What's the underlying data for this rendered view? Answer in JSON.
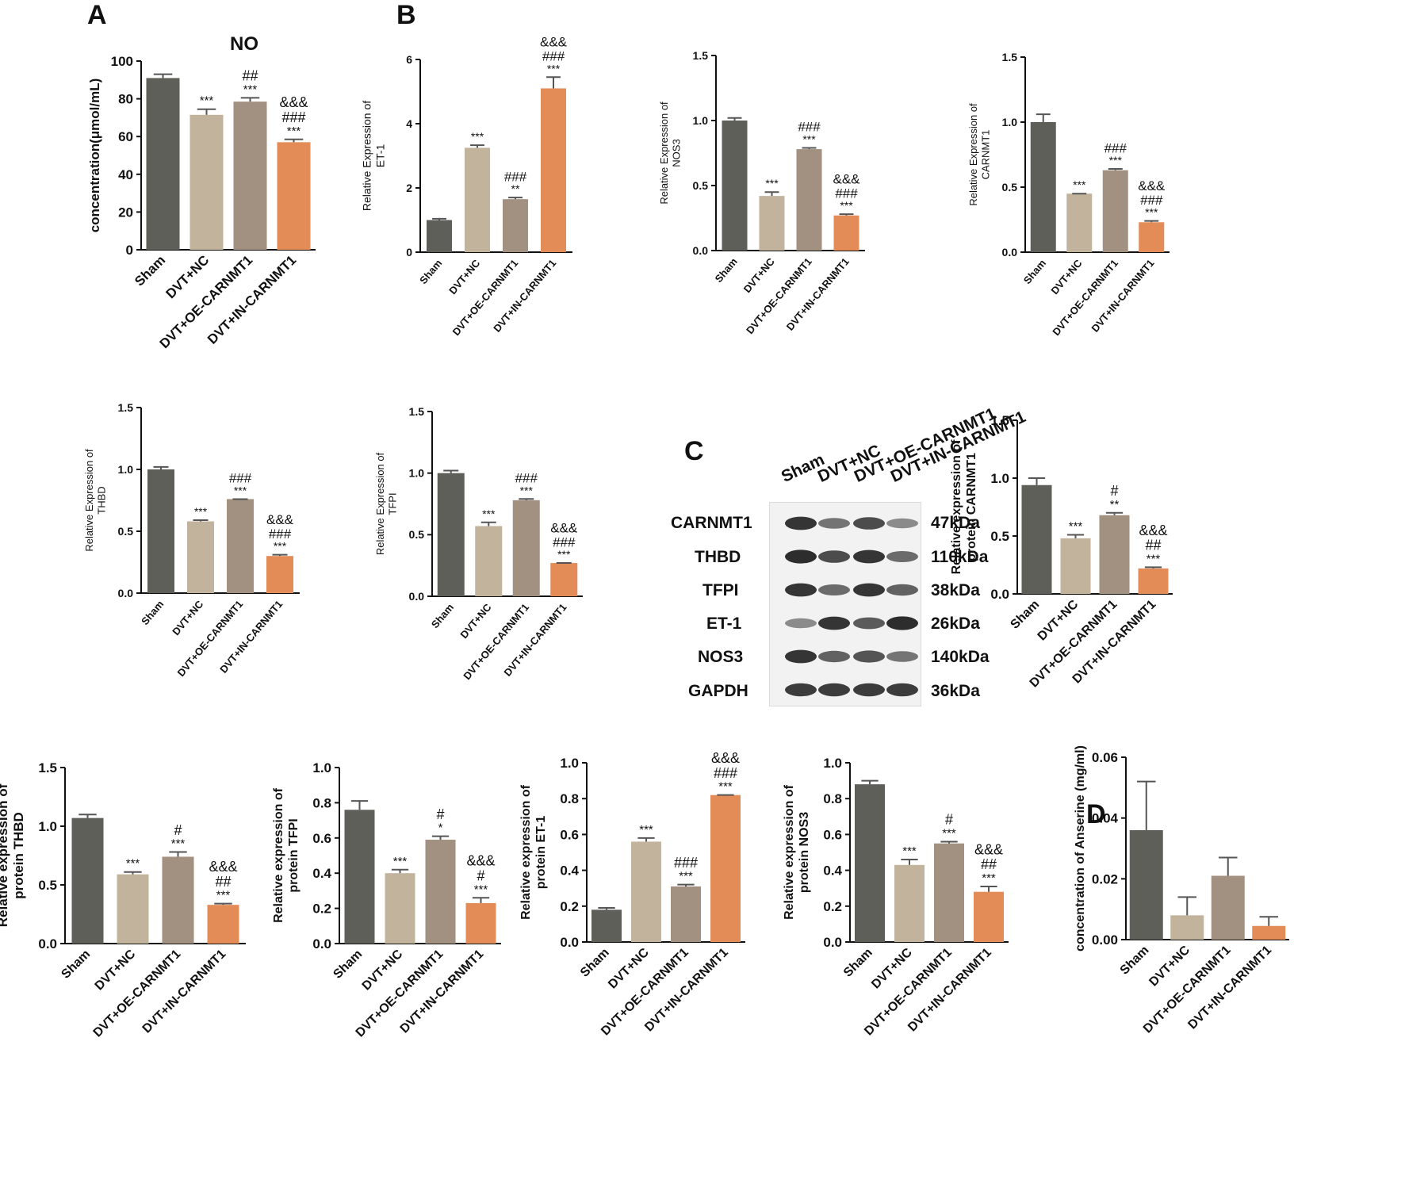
{
  "panel_labels": {
    "A": "A",
    "B": "B",
    "C": "C",
    "D": "D"
  },
  "colors": {
    "sham": "#5f5f5a",
    "nc": "#c2b49c",
    "oe": "#a29180",
    "in": "#e38c58",
    "axis": "#111111",
    "error": "#555555"
  },
  "chart_data": [
    {
      "id": "A-no",
      "type": "bar",
      "title": "NO",
      "ylabel": "concentration(μmol/mL)",
      "xlabel": "",
      "categories": [
        "Sham",
        "DVT+NC",
        "DVT+OE-CARNMT1",
        "DVT+IN-CARNMT1"
      ],
      "values": [
        91,
        71.5,
        78.5,
        57
      ],
      "errors": [
        2.0,
        3.0,
        2.0,
        1.5
      ],
      "annotations": [
        [],
        [
          "***"
        ],
        [
          "##",
          "***"
        ],
        [
          "&&&",
          "###",
          "***"
        ]
      ],
      "ylim": [
        0,
        100
      ],
      "yticks": [
        "0",
        "20",
        "40",
        "60",
        "80",
        "100"
      ]
    },
    {
      "id": "B-et1",
      "type": "bar",
      "title": "",
      "ylabel": [
        "Relative Expression of",
        "ET-1"
      ],
      "categories": [
        "Sham",
        "DVT+NC",
        "DVT+OE-CARNMT1",
        "DVT+IN-CARNMT1"
      ],
      "values": [
        1.0,
        3.25,
        1.65,
        5.1
      ],
      "errors": [
        0.04,
        0.08,
        0.05,
        0.35
      ],
      "annotations": [
        [],
        [
          "***"
        ],
        [
          "###",
          "**"
        ],
        [
          "&&&",
          "###",
          "***"
        ]
      ],
      "ylim": [
        0,
        6
      ],
      "yticks": [
        "0",
        "2",
        "4",
        "6"
      ]
    },
    {
      "id": "B-nos3",
      "type": "bar",
      "title": "",
      "ylabel": [
        "Relative Expression of",
        "NOS3"
      ],
      "categories": [
        "Sham",
        "DVT+NC",
        "DVT+OE-CARNMT1",
        "DVT+IN-CARNMT1"
      ],
      "values": [
        1.0,
        0.42,
        0.78,
        0.27
      ],
      "errors": [
        0.02,
        0.03,
        0.01,
        0.01
      ],
      "annotations": [
        [],
        [
          "***"
        ],
        [
          "###",
          "***"
        ],
        [
          "&&&",
          "###",
          "***"
        ]
      ],
      "ylim": [
        0,
        1.5
      ],
      "yticks": [
        "0.0",
        "0.5",
        "1.0",
        "1.5"
      ]
    },
    {
      "id": "B-carnmt1",
      "type": "bar",
      "title": "",
      "ylabel": [
        "Relative Expression of",
        "CARNMT1"
      ],
      "categories": [
        "Sham",
        "DVT+NC",
        "DVT+OE-CARNMT1",
        "DVT+IN-CARNMT1"
      ],
      "values": [
        1.0,
        0.45,
        0.63,
        0.23
      ],
      "errors": [
        0.06,
        0.0,
        0.01,
        0.01
      ],
      "annotations": [
        [],
        [
          "***"
        ],
        [
          "###",
          "***"
        ],
        [
          "&&&",
          "###",
          "***"
        ]
      ],
      "ylim": [
        0,
        1.5
      ],
      "yticks": [
        "0.0",
        "0.5",
        "1.0",
        "1.5"
      ]
    },
    {
      "id": "B-thbd",
      "type": "bar",
      "title": "",
      "ylabel": [
        "Relative Expression of",
        "THBD"
      ],
      "categories": [
        "Sham",
        "DVT+NC",
        "DVT+OE-CARNMT1",
        "DVT+IN-CARNMT1"
      ],
      "values": [
        1.0,
        0.58,
        0.76,
        0.3
      ],
      "errors": [
        0.02,
        0.01,
        0.0,
        0.01
      ],
      "annotations": [
        [],
        [
          "***"
        ],
        [
          "###",
          "***"
        ],
        [
          "&&&",
          "###",
          "***"
        ]
      ],
      "ylim": [
        0,
        1.5
      ],
      "yticks": [
        "0.0",
        "0.5",
        "1.0",
        "1.5"
      ]
    },
    {
      "id": "B-tfpi",
      "type": "bar",
      "title": "",
      "ylabel": [
        "Relative Expression of",
        "TFPI"
      ],
      "categories": [
        "Sham",
        "DVT+NC",
        "DVT+OE-CARNMT1",
        "DVT+IN-CARNMT1"
      ],
      "values": [
        1.0,
        0.57,
        0.78,
        0.27
      ],
      "errors": [
        0.02,
        0.03,
        0.01,
        0.0
      ],
      "annotations": [
        [],
        [
          "***"
        ],
        [
          "###",
          "***"
        ],
        [
          "&&&",
          "###",
          "***"
        ]
      ],
      "ylim": [
        0,
        1.5
      ],
      "yticks": [
        "0.0",
        "0.5",
        "1.0",
        "1.5"
      ]
    },
    {
      "id": "C-carnmt1",
      "type": "bar",
      "title": "",
      "ylabel": [
        "Relative expression of",
        "protein CARNMT1"
      ],
      "categories": [
        "Sham",
        "DVT+NC",
        "DVT+OE-CARNMT1",
        "DVT+IN-CARNMT1"
      ],
      "values": [
        0.94,
        0.48,
        0.68,
        0.22
      ],
      "errors": [
        0.06,
        0.03,
        0.02,
        0.01
      ],
      "annotations": [
        [],
        [
          "***"
        ],
        [
          "#",
          "**"
        ],
        [
          "&&&",
          "##",
          "***"
        ]
      ],
      "ylim": [
        0,
        1.5
      ],
      "yticks": [
        "0.0",
        "0.5",
        "1.0",
        "1.5"
      ]
    },
    {
      "id": "C-thbd",
      "type": "bar",
      "title": "",
      "ylabel": [
        "Relative expression of",
        "protein THBD"
      ],
      "categories": [
        "Sham",
        "DVT+NC",
        "DVT+OE-CARNMT1",
        "DVT+IN-CARNMT1"
      ],
      "values": [
        1.07,
        0.59,
        0.74,
        0.33
      ],
      "errors": [
        0.03,
        0.02,
        0.04,
        0.01
      ],
      "annotations": [
        [],
        [
          "***"
        ],
        [
          "#",
          "***"
        ],
        [
          "&&&",
          "##",
          "***"
        ]
      ],
      "ylim": [
        0,
        1.5
      ],
      "yticks": [
        "0.0",
        "0.5",
        "1.0",
        "1.5"
      ]
    },
    {
      "id": "C-tfpi",
      "type": "bar",
      "title": "",
      "ylabel": [
        "Relative expression of",
        "protein TFPI"
      ],
      "categories": [
        "Sham",
        "DVT+NC",
        "DVT+OE-CARNMT1",
        "DVT+IN-CARNMT1"
      ],
      "values": [
        0.76,
        0.4,
        0.59,
        0.23
      ],
      "errors": [
        0.05,
        0.02,
        0.02,
        0.03
      ],
      "annotations": [
        [],
        [
          "***"
        ],
        [
          "#",
          "*"
        ],
        [
          "&&&",
          "#",
          "***"
        ]
      ],
      "ylim": [
        0,
        1.0
      ],
      "yticks": [
        "0.0",
        "0.2",
        "0.4",
        "0.6",
        "0.8",
        "1.0"
      ]
    },
    {
      "id": "C-et1",
      "type": "bar",
      "title": "",
      "ylabel": [
        "Relative expression of",
        "protein ET-1"
      ],
      "categories": [
        "Sham",
        "DVT+NC",
        "DVT+OE-CARNMT1",
        "DVT+IN-CARNMT1"
      ],
      "values": [
        0.18,
        0.56,
        0.31,
        0.82
      ],
      "errors": [
        0.01,
        0.02,
        0.01,
        0.0
      ],
      "annotations": [
        [],
        [
          "***"
        ],
        [
          "###",
          "***"
        ],
        [
          "&&&",
          "###",
          "***"
        ]
      ],
      "ylim": [
        0,
        1.0
      ],
      "yticks": [
        "0.0",
        "0.2",
        "0.4",
        "0.6",
        "0.8",
        "1.0"
      ]
    },
    {
      "id": "C-nos3",
      "type": "bar",
      "title": "",
      "ylabel": [
        "Relative expression of",
        "protein NOS3"
      ],
      "categories": [
        "Sham",
        "DVT+NC",
        "DVT+OE-CARNMT1",
        "DVT+IN-CARNMT1"
      ],
      "values": [
        0.88,
        0.43,
        0.55,
        0.28
      ],
      "errors": [
        0.02,
        0.03,
        0.01,
        0.03
      ],
      "annotations": [
        [],
        [
          "***"
        ],
        [
          "#",
          "***"
        ],
        [
          "&&&",
          "##",
          "***"
        ]
      ],
      "ylim": [
        0,
        1.0
      ],
      "yticks": [
        "0.0",
        "0.2",
        "0.4",
        "0.6",
        "0.8",
        "1.0"
      ]
    },
    {
      "id": "D-anserine",
      "type": "bar",
      "title": "",
      "ylabel": "concentration of Anserine (mg/ml)",
      "categories": [
        "Sham",
        "DVT+NC",
        "DVT+OE-CARNMT1",
        "DVT+IN-CARNMT1"
      ],
      "values": [
        0.036,
        0.008,
        0.021,
        0.0045
      ],
      "errors": [
        0.016,
        0.006,
        0.006,
        0.003
      ],
      "annotations": [
        [],
        [],
        [],
        []
      ],
      "ylim": [
        0,
        0.06
      ],
      "yticks": [
        "0.00",
        "0.02",
        "0.04",
        "0.06"
      ]
    }
  ],
  "western_blot": {
    "lanes": [
      "Sham",
      "DVT+NC",
      "DVT+OE-CARNMT1",
      "DVT+IN-CARNMT1"
    ],
    "proteins": [
      "CARNMT1",
      "THBD",
      "TFPI",
      "ET-1",
      "NOS3",
      "GAPDH"
    ],
    "sizes": [
      "47kDa",
      "110kDa",
      "38kDa",
      "26kDa",
      "140kDa",
      "36kDa"
    ],
    "band_intensity": [
      [
        0.85,
        0.45,
        0.7,
        0.3
      ],
      [
        0.9,
        0.7,
        0.85,
        0.5
      ],
      [
        0.85,
        0.5,
        0.85,
        0.55
      ],
      [
        0.3,
        0.85,
        0.6,
        0.9
      ],
      [
        0.85,
        0.55,
        0.65,
        0.45
      ],
      [
        0.8,
        0.8,
        0.8,
        0.8
      ]
    ]
  }
}
